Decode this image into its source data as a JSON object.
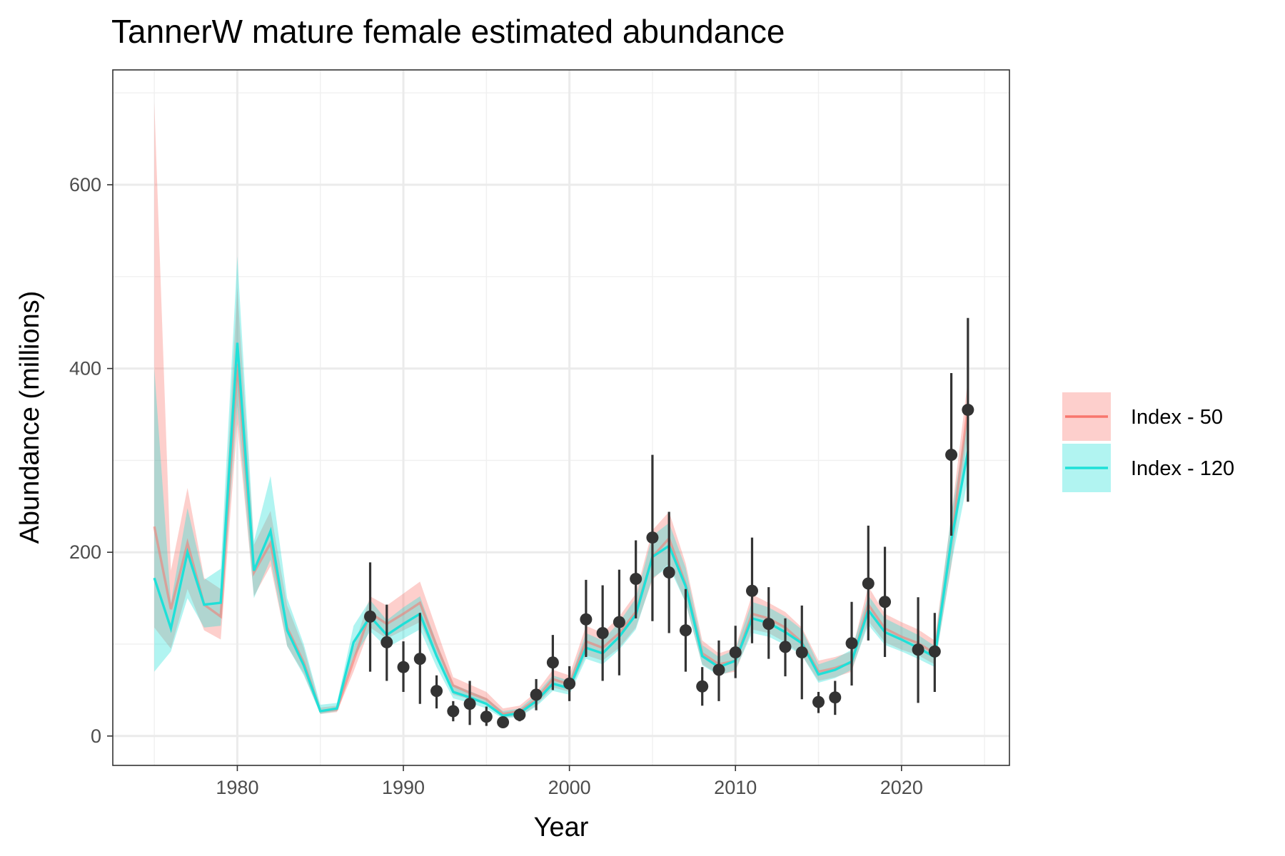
{
  "chart_data": {
    "type": "line",
    "title": "TannerW mature female estimated abundance",
    "xlabel": "Year",
    "ylabel": "Abundance (millions)",
    "xlim": [
      1972.5,
      2026.5
    ],
    "ylim": [
      -32,
      725
    ],
    "x_ticks": [
      1980,
      1990,
      2000,
      2010,
      2020
    ],
    "y_ticks": [
      0,
      200,
      400,
      600
    ],
    "x_tick_labels": [
      "1980",
      "1990",
      "2000",
      "2010",
      "2020"
    ],
    "y_tick_labels": [
      "0",
      "200",
      "400",
      "600"
    ],
    "grid": true,
    "legend_position": "right",
    "years": [
      1975,
      1976,
      1977,
      1978,
      1979,
      1980,
      1981,
      1982,
      1983,
      1984,
      1985,
      1986,
      1987,
      1988,
      1989,
      1990,
      1991,
      1992,
      1993,
      1994,
      1995,
      1996,
      1997,
      1998,
      1999,
      2000,
      2001,
      2002,
      2003,
      2004,
      2005,
      2006,
      2007,
      2008,
      2009,
      2010,
      2011,
      2012,
      2013,
      2014,
      2015,
      2016,
      2017,
      2018,
      2019,
      2020,
      2021,
      2022,
      2023,
      2024
    ],
    "series": [
      {
        "name": "Index - 50",
        "color": "#F8766D",
        "values": [
          228,
          138,
          210,
          143,
          130,
          405,
          178,
          210,
          118,
          80,
          27,
          29,
          82,
          134,
          122,
          133,
          145,
          98,
          55,
          47,
          40,
          24,
          27,
          40,
          62,
          56,
          103,
          96,
          112,
          135,
          195,
          215,
          165,
          90,
          78,
          82,
          133,
          128,
          118,
          102,
          70,
          74,
          80,
          143,
          117,
          108,
          101,
          90,
          212,
          358
        ],
        "lower": [
          118,
          95,
          160,
          115,
          105,
          340,
          152,
          185,
          98,
          68,
          24,
          26,
          70,
          118,
          106,
          115,
          124,
          84,
          45,
          40,
          34,
          20,
          22,
          33,
          53,
          48,
          88,
          82,
          96,
          118,
          170,
          188,
          145,
          78,
          67,
          70,
          116,
          112,
          102,
          88,
          60,
          64,
          70,
          125,
          102,
          94,
          88,
          78,
          185,
          330
        ],
        "upper": [
          690,
          180,
          270,
          172,
          160,
          488,
          208,
          245,
          142,
          96,
          31,
          33,
          96,
          152,
          142,
          155,
          168,
          116,
          64,
          56,
          48,
          30,
          33,
          48,
          72,
          66,
          120,
          112,
          130,
          155,
          224,
          244,
          188,
          104,
          90,
          96,
          154,
          145,
          135,
          118,
          82,
          86,
          92,
          163,
          133,
          124,
          116,
          104,
          240,
          388
        ]
      },
      {
        "name": "Index - 120",
        "color": "#1FE0D8",
        "values": [
          172,
          117,
          200,
          143,
          145,
          428,
          180,
          223,
          115,
          77,
          27,
          30,
          102,
          130,
          110,
          122,
          133,
          87,
          48,
          42,
          35,
          22,
          25,
          38,
          57,
          52,
          96,
          90,
          108,
          132,
          195,
          207,
          163,
          87,
          75,
          82,
          128,
          123,
          113,
          101,
          67,
          72,
          81,
          137,
          113,
          105,
          96,
          86,
          213,
          310
        ],
        "lower": [
          70,
          92,
          150,
          118,
          120,
          360,
          150,
          192,
          98,
          66,
          24,
          27,
          85,
          114,
          96,
          106,
          116,
          75,
          41,
          36,
          30,
          19,
          21,
          32,
          49,
          45,
          84,
          78,
          94,
          116,
          172,
          184,
          145,
          77,
          66,
          72,
          112,
          108,
          99,
          88,
          58,
          63,
          72,
          121,
          99,
          92,
          84,
          75,
          187,
          280
        ],
        "upper": [
          400,
          145,
          248,
          170,
          182,
          522,
          212,
          283,
          150,
          100,
          34,
          36,
          120,
          148,
          126,
          140,
          152,
          102,
          56,
          49,
          41,
          27,
          30,
          45,
          66,
          60,
          112,
          104,
          124,
          150,
          218,
          232,
          183,
          99,
          86,
          94,
          146,
          140,
          130,
          116,
          78,
          84,
          94,
          153,
          128,
          119,
          110,
          98,
          241,
          350
        ]
      }
    ],
    "survey_observations": {
      "years": [
        1988,
        1989,
        1990,
        1991,
        1992,
        1993,
        1994,
        1995,
        1996,
        1997,
        1998,
        1999,
        2000,
        2001,
        2002,
        2003,
        2004,
        2005,
        2006,
        2007,
        2008,
        2009,
        2010,
        2011,
        2012,
        2013,
        2014,
        2015,
        2016,
        2017,
        2018,
        2019,
        2021,
        2022,
        2023,
        2024
      ],
      "values": [
        130,
        102,
        75,
        84,
        49,
        27,
        35,
        21,
        15,
        23,
        45,
        80,
        57,
        127,
        112,
        124,
        171,
        216,
        178,
        115,
        54,
        72,
        91,
        158,
        122,
        97,
        91,
        37,
        42,
        101,
        166,
        146,
        94,
        92,
        306,
        355
      ],
      "lower": [
        70,
        60,
        48,
        35,
        30,
        16,
        12,
        11,
        11,
        16,
        28,
        50,
        38,
        86,
        60,
        66,
        128,
        125,
        112,
        70,
        33,
        38,
        63,
        101,
        84,
        65,
        40,
        25,
        23,
        55,
        104,
        86,
        36,
        48,
        218,
        255
      ],
      "upper": [
        189,
        143,
        103,
        134,
        66,
        38,
        60,
        32,
        19,
        30,
        62,
        110,
        76,
        170,
        164,
        181,
        213,
        306,
        244,
        160,
        75,
        104,
        120,
        216,
        162,
        128,
        142,
        48,
        60,
        146,
        229,
        206,
        151,
        134,
        395,
        455
      ]
    }
  }
}
